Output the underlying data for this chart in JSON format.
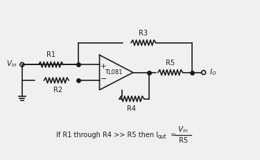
{
  "bg_color": "#f0f0f0",
  "line_color": "#1a1a1a",
  "text_color": "#1a1a1a",
  "lw": 1.2,
  "formula_text": "If R1 through R4 >> R5 then I",
  "formula_sub": "out",
  "formula_eq": " = ",
  "formula_num": "V",
  "formula_num_sub": "in",
  "formula_den": "R5",
  "components": {
    "R1_label": "R1",
    "R2_label": "R2",
    "R3_label": "R3",
    "R4_label": "R4",
    "R5_label": "R5",
    "opamp_label": "TL081",
    "vin_label": "V",
    "io_label": "I"
  }
}
